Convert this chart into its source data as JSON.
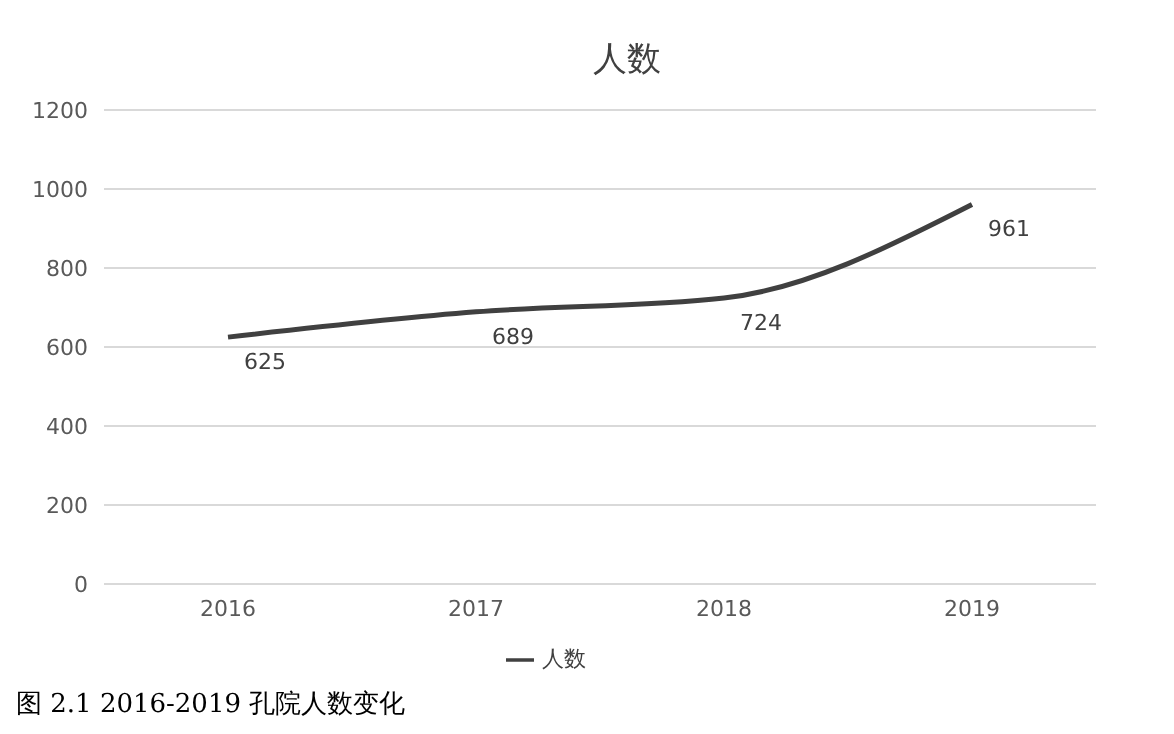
{
  "chart_data": {
    "type": "line",
    "title": "人数",
    "categories": [
      "2016",
      "2017",
      "2018",
      "2019"
    ],
    "series": [
      {
        "name": "人数",
        "color": "#404040",
        "values": [
          625,
          689,
          724,
          961
        ]
      }
    ],
    "ylim": [
      0,
      1200
    ],
    "yticks": [
      0,
      200,
      400,
      600,
      800,
      1000,
      1200
    ],
    "grid": "y",
    "legend": "bottom",
    "marker": "none",
    "line_style": "solid",
    "data_labels": true,
    "annotations": [
      "图 2.1 2016-2019 孔院人数变化"
    ]
  }
}
